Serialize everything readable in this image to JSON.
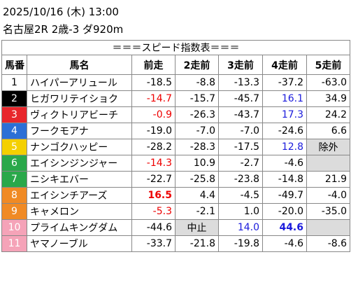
{
  "header": {
    "date": "2025/10/16 (木) 13:00",
    "race": "名古屋2R 2歳-3 ダ920m"
  },
  "table": {
    "title": "＝＝＝スピード指数表＝＝＝",
    "columns": [
      "馬番",
      "馬名",
      "前走",
      "2走前",
      "3走前",
      "4走前",
      "5走前"
    ],
    "rows": [
      [
        "1",
        "ハイパーアリュール",
        "-18.5",
        "-8.8",
        "-13.3",
        "-37.2",
        "-63.0"
      ],
      [
        "2",
        "ヒガワリテイショク",
        "-14.7",
        "-15.7",
        "-45.7",
        "16.1",
        "34.9"
      ],
      [
        "3",
        "ヴィクトリアビーチ",
        "-0.9",
        "-26.3",
        "-43.7",
        "17.3",
        "24.2"
      ],
      [
        "4",
        "フークモアナ",
        "-19.0",
        "-7.0",
        "-7.0",
        "-24.6",
        "6.6"
      ],
      [
        "5",
        "ナンゴクハッピー",
        "-28.2",
        "-28.3",
        "-17.5",
        "12.8",
        "除外"
      ],
      [
        "6",
        "エイシンジンジャー",
        "-14.3",
        "10.9",
        "-2.7",
        "-4.6",
        null
      ],
      [
        "7",
        "ニシキエバー",
        "-22.7",
        "-25.8",
        "-23.8",
        "-14.8",
        "21.9"
      ],
      [
        "8",
        "エイシンチアーズ",
        "16.5",
        "4.4",
        "-4.5",
        "-49.7",
        "-4.0"
      ],
      [
        "9",
        "キャメロン",
        "-5.3",
        "-2.1",
        "1.0",
        "-20.0",
        "-35.0"
      ],
      [
        "10",
        "プライムキングダム",
        "-44.6",
        "中止",
        "14.0",
        "44.6",
        null
      ],
      [
        "11",
        "ヤマノーブル",
        "-33.7",
        "-21.8",
        "-19.8",
        "-4.6",
        "-8.6"
      ]
    ]
  }
}
